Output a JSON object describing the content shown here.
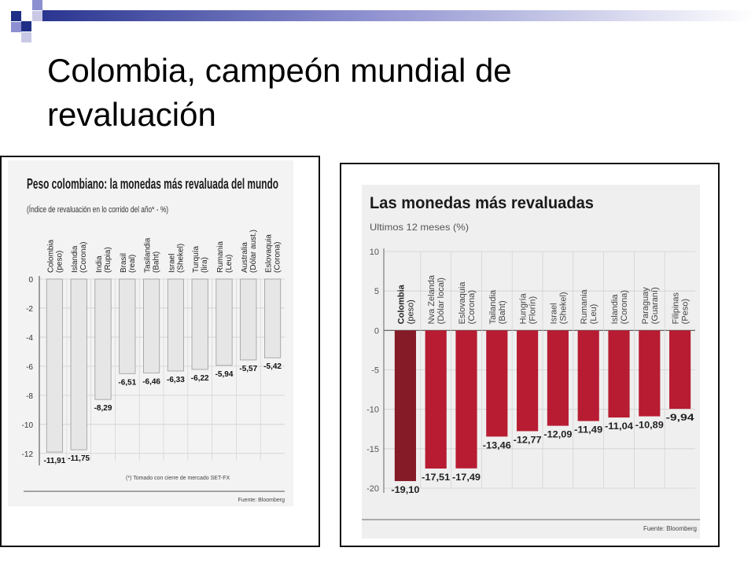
{
  "slide": {
    "title_line1": "Colombia, campeón mundial de",
    "title_line2": "revaluación",
    "accent_colors": [
      "#1f2f86",
      "#8c8fd0",
      "#c9c9e6"
    ]
  },
  "chart_data": [
    {
      "type": "bar",
      "title": "Peso colombiano: la monedas más revaluada del mundo",
      "subtitle": "(Índice de revaluación en lo corrido del año* - %)",
      "categories": [
        "Colombia (peso)",
        "Islandia (Corona)",
        "India (Rupia)",
        "Brasil (real)",
        "Tasilandia (Baht)",
        "Israel (Shekel)",
        "Turquía (lira)",
        "Rumania (Leu)",
        "Australia (Dólar aust.)",
        "Eslovaquia (Corona)"
      ],
      "category_lines": [
        [
          "Colombia",
          "(peso)"
        ],
        [
          "Islandia",
          "(Corona)"
        ],
        [
          "India",
          "(Rupia)"
        ],
        [
          "Brasil",
          "(real)"
        ],
        [
          "Tasilandia",
          "(Baht)"
        ],
        [
          "Israel",
          "(Shekel)"
        ],
        [
          "Turquía",
          "(lira)"
        ],
        [
          "Rumania",
          "(Leu)"
        ],
        [
          "Australia",
          "(Dólar aust.)"
        ],
        [
          "Eslovaquia",
          "(Corona)"
        ]
      ],
      "values": [
        -11.91,
        -11.75,
        -8.29,
        -6.51,
        -6.46,
        -6.33,
        -6.22,
        -5.94,
        -5.57,
        -5.42
      ],
      "value_labels": [
        "-11,91",
        "-11,75",
        "-8,29",
        "-6,51",
        "-6,46",
        "-6,33",
        "-6,22",
        "-5,94",
        "-5,57",
        "-5,42"
      ],
      "yticks": [
        0,
        -2,
        -4,
        -6,
        -8,
        -10,
        -12
      ],
      "ytick_labels": [
        "0",
        "-2",
        "-4",
        "-6",
        "-8",
        "-10",
        "-12"
      ],
      "ylim": [
        -12.5,
        0
      ],
      "footnote": "(*) Tomado con cierre de mercado SET-FX",
      "source": "Fuente: Bloomberg",
      "bar_color": "#e6e6e6",
      "grid": true
    },
    {
      "type": "bar",
      "title": "Las monedas más revaluadas",
      "subtitle": "Ultimos 12 meses (%)",
      "categories": [
        "Colombia (peso)",
        "Nva Zelanda (Dólar local)",
        "Eslovaquia (Corona)",
        "Tailandia (Baht)",
        "Hungría (Florín)",
        "Israel (Shekel)",
        "Rumania (Leu)",
        "Islandia (Corona)",
        "Paraguay (Guaraní)",
        "Filipinas (Peso)"
      ],
      "category_lines": [
        [
          "Colombia",
          "(peso)"
        ],
        [
          "Nva Zelanda",
          "(Dólar local)"
        ],
        [
          "Eslovaquia",
          "(Corona)"
        ],
        [
          "Tailandia",
          "(Baht)"
        ],
        [
          "Hungría",
          "(Florín)"
        ],
        [
          "Israel",
          "(Shekel)"
        ],
        [
          "Rumania",
          "(Leu)"
        ],
        [
          "Islandia",
          "(Corona)"
        ],
        [
          "Paraguay",
          "(Guaraní)"
        ],
        [
          "Filipinas",
          "(Peso)"
        ]
      ],
      "values": [
        -19.1,
        -17.51,
        -17.49,
        -13.46,
        -12.77,
        -12.09,
        -11.49,
        -11.04,
        -10.89,
        -9.94
      ],
      "value_labels": [
        "-19,10",
        "-17,51",
        "-17,49",
        "-13,46",
        "-12,77",
        "-12,09",
        "-11,49",
        "-11,04",
        "-10,89",
        "-9,94"
      ],
      "yticks": [
        10,
        5,
        0,
        -5,
        -10,
        -15,
        -20
      ],
      "ytick_labels": [
        "10",
        "5",
        "0",
        "-5",
        "-10",
        "-15",
        "-20"
      ],
      "ylim": [
        -20,
        10
      ],
      "source": "Fuente: Bloomberg",
      "bar_color": "#b71c32",
      "highlight_color": "#861b28",
      "grid": true
    }
  ]
}
